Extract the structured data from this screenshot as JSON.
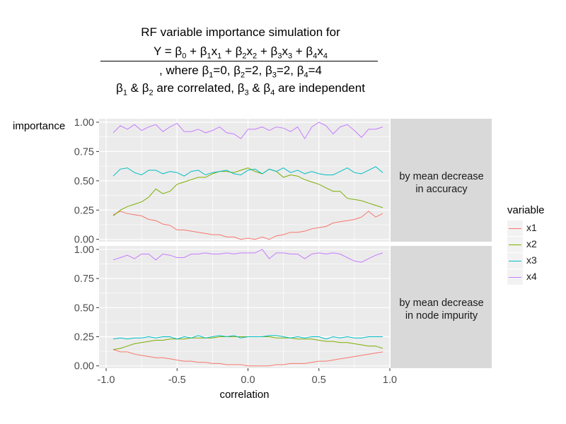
{
  "title": {
    "line1": "RF variable importance simulation for",
    "line2": "Y = β₀ + β₁x₁ + β₂x₂ + β₃x₃ + β₄x₄",
    "line3": ", where β₁=0, β₂=2, β₃=2, β₄=4",
    "line4": "β₁ & β₂ are correlated, β₃ & β₄ are independent"
  },
  "colors": {
    "panel_bg": "#ebebeb",
    "grid": "#ffffff",
    "strip_bg": "#d9d9d9"
  },
  "chart_data": {
    "type": "line",
    "xlabel": "correlation",
    "ylabel": "importance",
    "xlim": [
      -1.05,
      1.0
    ],
    "ylim": [
      -0.02,
      1.03
    ],
    "x_ticks": [
      "-1.0",
      "-0.5",
      "0.0",
      "0.5",
      "1.0"
    ],
    "y_ticks": [
      "0.00",
      "0.25",
      "0.50",
      "0.75",
      "1.00"
    ],
    "legend": {
      "title": "variable",
      "placement": "right",
      "entries": [
        {
          "name": "x1",
          "color": "#F8766D"
        },
        {
          "name": "x2",
          "color": "#7CAE00"
        },
        {
          "name": "x3",
          "color": "#00BFC4"
        },
        {
          "name": "x4",
          "color": "#C77CFF"
        }
      ]
    },
    "x": [
      -0.95,
      -0.9,
      -0.85,
      -0.8,
      -0.75,
      -0.7,
      -0.65,
      -0.6,
      -0.55,
      -0.5,
      -0.45,
      -0.4,
      -0.35,
      -0.3,
      -0.25,
      -0.2,
      -0.15,
      -0.1,
      -0.05,
      0,
      0.05,
      0.1,
      0.15,
      0.2,
      0.25,
      0.3,
      0.35,
      0.4,
      0.45,
      0.5,
      0.55,
      0.6,
      0.65,
      0.7,
      0.75,
      0.8,
      0.85,
      0.9,
      0.95
    ],
    "panels": [
      {
        "strip": "by mean decrease\nin accuracy",
        "series": [
          {
            "name": "x1",
            "values": [
              0.21,
              0.24,
              0.22,
              0.21,
              0.2,
              0.17,
              0.16,
              0.13,
              0.12,
              0.08,
              0.08,
              0.07,
              0.06,
              0.05,
              0.04,
              0.04,
              0.02,
              0.02,
              0.0,
              0.01,
              0.0,
              0.02,
              0.0,
              0.03,
              0.04,
              0.06,
              0.06,
              0.07,
              0.09,
              0.1,
              0.11,
              0.14,
              0.15,
              0.16,
              0.17,
              0.19,
              0.24,
              0.19,
              0.22
            ]
          },
          {
            "name": "x2",
            "values": [
              0.2,
              0.25,
              0.28,
              0.3,
              0.32,
              0.36,
              0.43,
              0.39,
              0.41,
              0.47,
              0.49,
              0.51,
              0.53,
              0.53,
              0.56,
              0.58,
              0.58,
              0.57,
              0.59,
              0.61,
              0.58,
              0.56,
              0.6,
              0.58,
              0.53,
              0.55,
              0.54,
              0.51,
              0.49,
              0.47,
              0.44,
              0.41,
              0.41,
              0.35,
              0.34,
              0.33,
              0.31,
              0.29,
              0.27
            ]
          },
          {
            "name": "x3",
            "values": [
              0.54,
              0.6,
              0.61,
              0.57,
              0.55,
              0.59,
              0.59,
              0.56,
              0.58,
              0.57,
              0.54,
              0.58,
              0.59,
              0.55,
              0.57,
              0.58,
              0.59,
              0.56,
              0.55,
              0.59,
              0.6,
              0.56,
              0.6,
              0.58,
              0.61,
              0.57,
              0.59,
              0.56,
              0.58,
              0.56,
              0.55,
              0.55,
              0.58,
              0.61,
              0.57,
              0.56,
              0.59,
              0.62,
              0.57
            ]
          },
          {
            "name": "x4",
            "values": [
              0.91,
              0.97,
              0.94,
              0.98,
              0.93,
              0.96,
              0.98,
              0.92,
              0.96,
              0.99,
              0.92,
              0.92,
              0.94,
              0.91,
              0.93,
              0.96,
              0.91,
              0.9,
              0.86,
              0.94,
              0.94,
              0.96,
              0.93,
              0.96,
              0.95,
              0.92,
              0.96,
              0.86,
              0.96,
              1.0,
              0.97,
              0.9,
              0.96,
              0.98,
              0.93,
              0.87,
              0.94,
              0.94,
              0.96
            ]
          }
        ]
      },
      {
        "strip": "by mean decrease\nin node impurity",
        "series": [
          {
            "name": "x1",
            "values": [
              0.14,
              0.12,
              0.12,
              0.1,
              0.09,
              0.08,
              0.07,
              0.07,
              0.06,
              0.05,
              0.04,
              0.04,
              0.03,
              0.03,
              0.02,
              0.02,
              0.01,
              0.01,
              0.01,
              0.0,
              0.0,
              0.0,
              0.0,
              0.01,
              0.01,
              0.02,
              0.02,
              0.02,
              0.03,
              0.04,
              0.04,
              0.05,
              0.06,
              0.07,
              0.08,
              0.09,
              0.1,
              0.11,
              0.12
            ]
          },
          {
            "name": "x2",
            "values": [
              0.14,
              0.15,
              0.17,
              0.19,
              0.2,
              0.21,
              0.22,
              0.22,
              0.23,
              0.23,
              0.23,
              0.24,
              0.24,
              0.24,
              0.24,
              0.25,
              0.25,
              0.25,
              0.25,
              0.25,
              0.25,
              0.25,
              0.25,
              0.24,
              0.24,
              0.24,
              0.23,
              0.23,
              0.23,
              0.22,
              0.21,
              0.21,
              0.2,
              0.2,
              0.19,
              0.18,
              0.17,
              0.17,
              0.15
            ]
          },
          {
            "name": "x3",
            "values": [
              0.23,
              0.24,
              0.23,
              0.24,
              0.24,
              0.25,
              0.24,
              0.25,
              0.25,
              0.23,
              0.25,
              0.24,
              0.26,
              0.24,
              0.25,
              0.26,
              0.25,
              0.26,
              0.24,
              0.25,
              0.25,
              0.25,
              0.26,
              0.26,
              0.25,
              0.24,
              0.25,
              0.24,
              0.25,
              0.25,
              0.23,
              0.25,
              0.24,
              0.25,
              0.24,
              0.24,
              0.25,
              0.25,
              0.25
            ]
          },
          {
            "name": "x4",
            "values": [
              0.91,
              0.93,
              0.95,
              0.92,
              0.96,
              0.96,
              0.91,
              0.96,
              0.95,
              0.93,
              0.93,
              0.96,
              0.96,
              0.97,
              0.96,
              0.96,
              0.97,
              0.96,
              0.97,
              0.97,
              0.97,
              1.0,
              0.92,
              0.97,
              0.97,
              0.96,
              0.96,
              0.92,
              0.96,
              0.97,
              0.96,
              0.97,
              0.96,
              0.93,
              0.9,
              0.89,
              0.92,
              0.95,
              0.97
            ]
          }
        ]
      }
    ]
  }
}
